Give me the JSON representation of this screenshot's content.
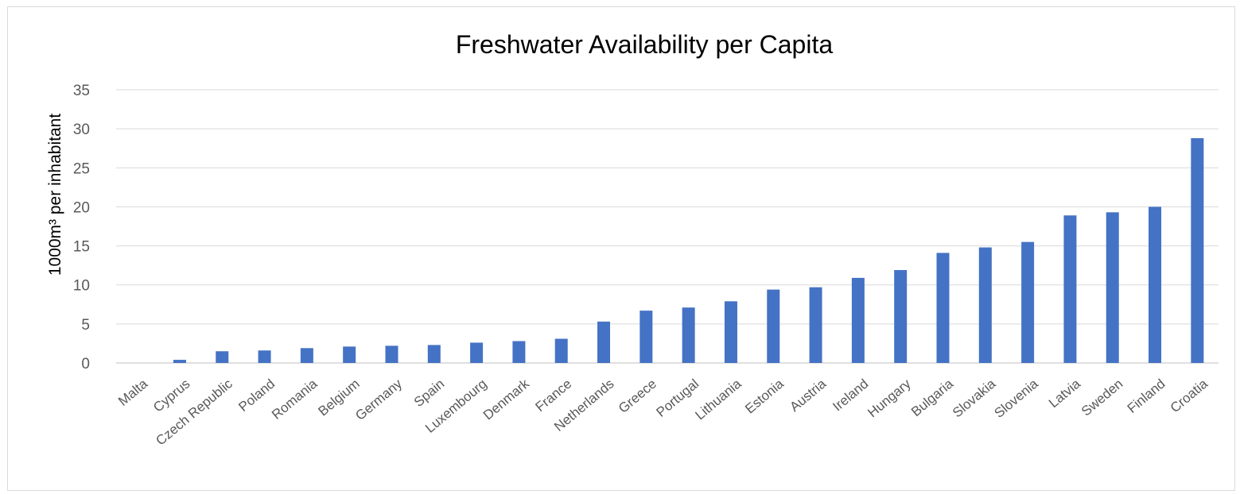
{
  "chart_data": {
    "type": "bar",
    "title": "Freshwater Availability per Capita",
    "ylabel": "1000m³ per inhabitant",
    "xlabel": "",
    "ylim": [
      0,
      35
    ],
    "yticks": [
      0,
      5,
      10,
      15,
      20,
      25,
      30,
      35
    ],
    "grid": true,
    "legend": "none",
    "bar_color": "#4472c4",
    "categories": [
      "Malta",
      "Cyprus",
      "Czech Republic",
      "Poland",
      "Romania",
      "Belgium",
      "Germany",
      "Spain",
      "Luxembourg",
      "Denmark",
      "France",
      "Netherlands",
      "Greece",
      "Portugal",
      "Lithuania",
      "Estonia",
      "Austria",
      "Ireland",
      "Hungary",
      "Bulgaria",
      "Slovakia",
      "Slovenia",
      "Latvia",
      "Sweden",
      "Finland",
      "Croatia"
    ],
    "values": [
      0.0,
      0.4,
      1.5,
      1.6,
      1.9,
      2.1,
      2.2,
      2.3,
      2.6,
      2.8,
      3.1,
      5.3,
      6.7,
      7.1,
      7.9,
      9.4,
      9.7,
      10.9,
      11.9,
      14.1,
      14.8,
      15.5,
      18.9,
      19.3,
      20.0,
      28.8
    ]
  }
}
